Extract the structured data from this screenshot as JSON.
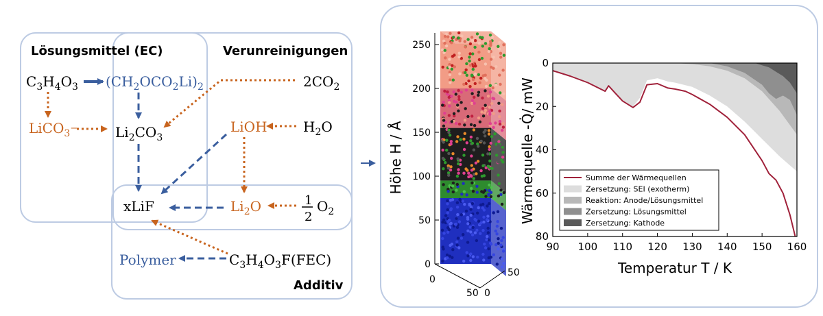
{
  "colors": {
    "blue": "#3A5E9E",
    "orange": "#C8641E",
    "box": "#BDCBE3",
    "heat_total": "#A0213A",
    "sei": "#DDDDDD",
    "anode": "#B8B8B8",
    "solvent": "#8F8F8F",
    "cathode": "#5A5A5A"
  },
  "diagram": {
    "groups": {
      "solvent": "Lösungsmittel (EC)",
      "impurities": "Verunreinigungen",
      "additive": "Additiv"
    },
    "species": {
      "ec": "C3H4O3",
      "lithium_ethylene_dicarbonate": "(CH2OCO2Li)2",
      "co2": "2CO2",
      "lico3": "LiCO3−",
      "li2co3": "Li2CO3",
      "lioh": "LiOH",
      "h2o": "H2O",
      "lif": "xLiF",
      "li2o": "Li2O",
      "o2": "1/2 O2",
      "polymer": "Polymer",
      "fec": "C3H4O3F(FEC)"
    }
  },
  "simulation": {
    "axis_label": "Höhe H / Å",
    "height_ticks": [
      "0",
      "50",
      "100",
      "150",
      "200",
      "250"
    ],
    "base_ticks_left": [
      "0",
      "50"
    ],
    "base_ticks_right": [
      "0",
      "50"
    ],
    "layers": [
      {
        "from": 0,
        "to": 75,
        "color": "#1F2FBF"
      },
      {
        "from": 75,
        "to": 95,
        "color": "#2E8B2E"
      },
      {
        "from": 95,
        "to": 155,
        "color": "#1E1E1E"
      },
      {
        "from": 155,
        "to": 200,
        "color": "#D96A78"
      },
      {
        "from": 200,
        "to": 265,
        "color": "#F29C86"
      }
    ]
  },
  "chart_data": {
    "type": "area",
    "xlabel": "Temperatur T / K",
    "ylabel": "Wärmequelle -Q̇/ mW",
    "xlim": [
      90,
      160
    ],
    "ylim": [
      0,
      80
    ],
    "y_inverted": true,
    "x_ticks": [
      90,
      100,
      110,
      120,
      130,
      140,
      150,
      160
    ],
    "y_ticks": [
      0,
      20,
      40,
      60,
      80
    ],
    "legend_position": "bottom-left",
    "series": [
      {
        "name": "Summe der Wärmequellen",
        "kind": "line",
        "x": [
          90,
          95,
          100,
          105,
          106,
          108,
          110,
          113,
          115,
          117,
          120,
          123,
          125,
          128,
          130,
          135,
          140,
          145,
          150,
          152,
          154,
          156,
          158,
          159.5
        ],
        "y": [
          3.5,
          6,
          9,
          13,
          10.5,
          14,
          17.5,
          20.5,
          18,
          10,
          9.5,
          11.5,
          12,
          13,
          14.5,
          19,
          25,
          33,
          45,
          51,
          54,
          60,
          70,
          80
        ]
      },
      {
        "name": "Zersetzung: SEI (exotherm)",
        "kind": "area",
        "x": [
          90,
          95,
          100,
          105,
          106,
          108,
          110,
          113,
          115,
          117,
          120,
          123,
          125,
          130,
          135,
          140,
          145,
          150,
          155,
          160
        ],
        "y": [
          3.5,
          6,
          9,
          13,
          10.5,
          14,
          17.5,
          20,
          16,
          8,
          7,
          8.5,
          9,
          11,
          15,
          20,
          27,
          35,
          43,
          50
        ]
      },
      {
        "name": "Reaktion: Anode/Lösungsmittel",
        "kind": "area",
        "x": [
          125,
          130,
          135,
          140,
          145,
          150,
          155,
          160
        ],
        "y": [
          0,
          0.5,
          1.5,
          3.5,
          7,
          13,
          22,
          33
        ]
      },
      {
        "name": "Zersetzung: Lösungsmittel",
        "kind": "area",
        "x": [
          135,
          140,
          145,
          150,
          152,
          154,
          156,
          158,
          160
        ],
        "y": [
          0,
          1.5,
          4.5,
          10,
          14,
          16.5,
          15,
          17,
          24
        ]
      },
      {
        "name": "Zersetzung: Kathode",
        "kind": "area",
        "x": [
          148,
          150,
          152,
          154,
          156,
          158,
          160
        ],
        "y": [
          0,
          1,
          2,
          4,
          6,
          9,
          14
        ]
      }
    ]
  }
}
